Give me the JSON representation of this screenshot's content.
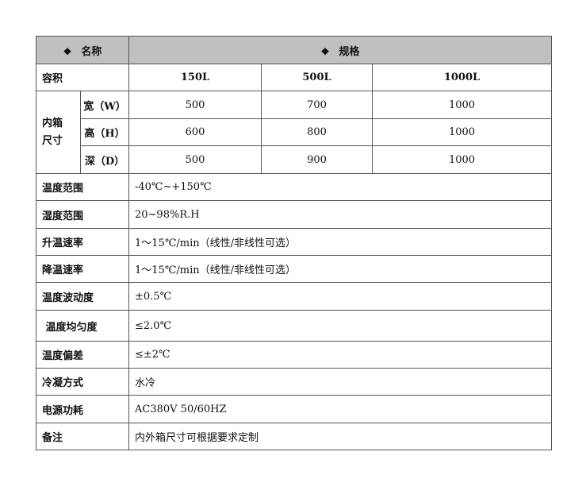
{
  "header": {
    "name_label": "名称",
    "spec_label": "规格",
    "bullet_icon": "diamond-bullet",
    "bg_color": "#c0c0c0"
  },
  "capacity": {
    "label": "容积",
    "values": [
      "150L",
      "500L",
      "1000L"
    ]
  },
  "inner_size": {
    "label": "内箱尺寸",
    "rows": [
      {
        "label": "宽（W）",
        "values": [
          "500",
          "700",
          "1000"
        ]
      },
      {
        "label": "高（H）",
        "values": [
          "600",
          "800",
          "1000"
        ]
      },
      {
        "label": "深（D）",
        "values": [
          "500",
          "900",
          "1000"
        ]
      }
    ]
  },
  "specs": [
    {
      "label": "温度范围",
      "value": "-40℃~+150℃"
    },
    {
      "label": "湿度范围",
      "value": "20~98%R.H"
    },
    {
      "label": "升温速率",
      "value": "1～15℃/min（线性/非线性可选）"
    },
    {
      "label": "降温速率",
      "value": "1～15℃/min（线性/非线性可选）"
    },
    {
      "label": "温度波动度",
      "value": "±0.5℃"
    },
    {
      "label": " 温度均匀度",
      "value": "≤2.0℃"
    },
    {
      "label": "温度偏差",
      "value": "≤±2℃"
    },
    {
      "label": "冷凝方式",
      "value": "水冷"
    },
    {
      "label": "电源功耗",
      "value": "AC380V 50/60HZ"
    },
    {
      "label": "备注",
      "value": "内外箱尺寸可根据要求定制"
    }
  ]
}
